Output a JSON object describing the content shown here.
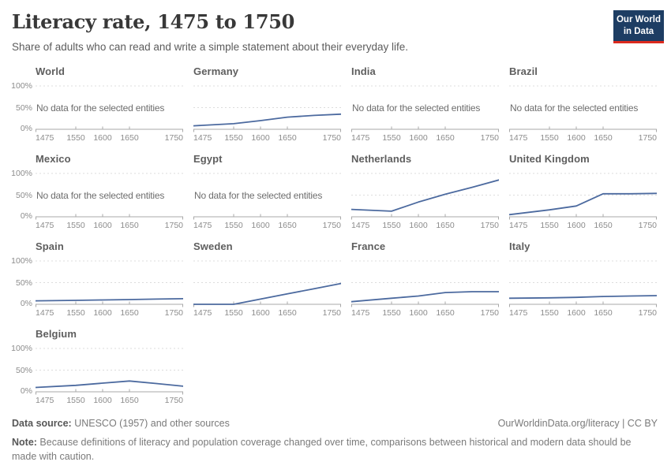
{
  "header": {
    "title": "Literacy rate, 1475 to 1750",
    "subtitle": "Share of adults who can read and write a simple statement about their everyday life.",
    "logo": {
      "line1": "Our World",
      "line2": "in Data"
    }
  },
  "colors": {
    "line": "#4c6a9f",
    "gridline": "#dcdcdc",
    "axis": "#a8a8a8",
    "tick_label": "#8c8c8c",
    "panel_title": "#5e5e5e",
    "no_data": "#6e6e6e",
    "logo_navy": "#1d3d63",
    "logo_red": "#dc2a1e"
  },
  "chart_data": {
    "type": "line",
    "title": "Literacy rate, 1475 to 1750",
    "unit": "%",
    "x": [
      1475,
      1550,
      1600,
      1650,
      1700,
      1750
    ],
    "x_ticks": [
      "1475",
      "1550",
      "1600",
      "1650",
      "1750"
    ],
    "x_tick_years": [
      1475,
      1550,
      1600,
      1650,
      1750
    ],
    "xlim": [
      1475,
      1750
    ],
    "ylim": [
      0,
      100
    ],
    "y_tick_labels": [
      "100%",
      "50%",
      "0%"
    ],
    "grid": "dashed horizontal lines at 50% and 100%, solid axis at 0%",
    "legend": "none (small multiples, one series per panel)",
    "no_data_text": "No data for the selected entities",
    "panels": [
      {
        "name": "World",
        "values": null
      },
      {
        "name": "Germany",
        "values": [
          8,
          13,
          20,
          28,
          32,
          35
        ]
      },
      {
        "name": "India",
        "values": null
      },
      {
        "name": "Brazil",
        "values": null
      },
      {
        "name": "Mexico",
        "values": null
      },
      {
        "name": "Egypt",
        "values": null
      },
      {
        "name": "Netherlands",
        "values": [
          17,
          13,
          34,
          52,
          68,
          85
        ]
      },
      {
        "name": "United Kingdom",
        "values": [
          5,
          16,
          25,
          53,
          53,
          54
        ]
      },
      {
        "name": "Spain",
        "values": [
          8,
          9,
          10,
          11,
          12,
          13
        ]
      },
      {
        "name": "Sweden",
        "values": [
          0,
          0,
          12,
          24,
          36,
          48
        ]
      },
      {
        "name": "France",
        "values": [
          6,
          14,
          19,
          27,
          29,
          29
        ]
      },
      {
        "name": "Italy",
        "values": [
          14,
          15,
          16,
          18,
          19,
          20
        ]
      },
      {
        "name": "Belgium",
        "values": [
          10,
          15,
          20,
          25,
          19,
          13
        ]
      }
    ]
  },
  "footer": {
    "source_label": "Data source:",
    "source_text": " UNESCO (1957) and other sources",
    "link_text": "OurWorldinData.org/literacy | CC BY",
    "note_label": "Note:",
    "note_text": " Because definitions of literacy and population coverage changed over time, comparisons between historical and modern data should be made with caution."
  }
}
